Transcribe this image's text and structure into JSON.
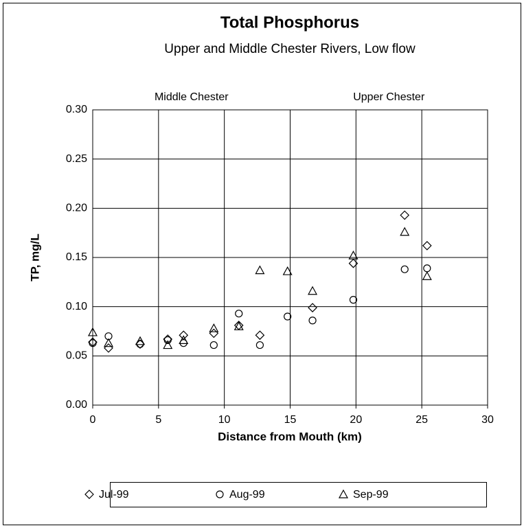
{
  "chart_data": {
    "type": "scatter",
    "title": "Total Phosphorus",
    "subtitle": "Upper and Middle Chester Rivers, Low flow",
    "xlabel": "Distance from Mouth (km)",
    "ylabel": "TP, mg/L",
    "annotations": [
      {
        "text": "Middle Chester",
        "x": 7.5
      },
      {
        "text": "Upper Chester",
        "x": 22.5
      }
    ],
    "xlim": [
      0,
      30
    ],
    "xticks": [
      0,
      5,
      10,
      15,
      20,
      25,
      30
    ],
    "ylim": [
      0,
      0.3
    ],
    "yticks": [
      {
        "value": 0,
        "label": "0.00"
      },
      {
        "value": 0.05,
        "label": "0.05"
      },
      {
        "value": 0.1,
        "label": "0.10"
      },
      {
        "value": 0.15,
        "label": "0.15"
      },
      {
        "value": 0.2,
        "label": "0.20"
      },
      {
        "value": 0.25,
        "label": "0.25"
      },
      {
        "value": 0.3,
        "label": "0.30"
      }
    ],
    "grid": true,
    "legend": "bottom",
    "series": [
      {
        "name": "Jul-99",
        "marker": "diamond",
        "color": "#000000",
        "x": [
          0,
          1.2,
          3.6,
          5.7,
          6.9,
          9.2,
          11.1,
          12.7,
          16.7,
          19.8,
          23.7,
          25.4
        ],
        "values": [
          0.064,
          0.058,
          0.062,
          0.067,
          0.071,
          0.073,
          0.081,
          0.071,
          0.099,
          0.144,
          0.193,
          0.162
        ]
      },
      {
        "name": "Aug-99",
        "marker": "circle",
        "color": "#000000",
        "x": [
          0,
          1.2,
          3.6,
          5.7,
          6.9,
          9.2,
          11.1,
          12.7,
          14.8,
          16.7,
          19.8,
          23.7,
          25.4
        ],
        "values": [
          0.063,
          0.07,
          0.062,
          0.066,
          0.063,
          0.061,
          0.093,
          0.061,
          0.09,
          0.086,
          0.107,
          0.138,
          0.139
        ]
      },
      {
        "name": "Sep-99",
        "marker": "triangle",
        "color": "#000000",
        "x": [
          0,
          1.2,
          3.6,
          5.7,
          6.9,
          9.2,
          11.1,
          12.7,
          14.8,
          16.7,
          19.8,
          23.7,
          25.4
        ],
        "values": [
          0.074,
          0.063,
          0.065,
          0.061,
          0.066,
          0.078,
          0.08,
          0.137,
          0.136,
          0.116,
          0.152,
          0.176,
          0.131
        ]
      }
    ]
  }
}
